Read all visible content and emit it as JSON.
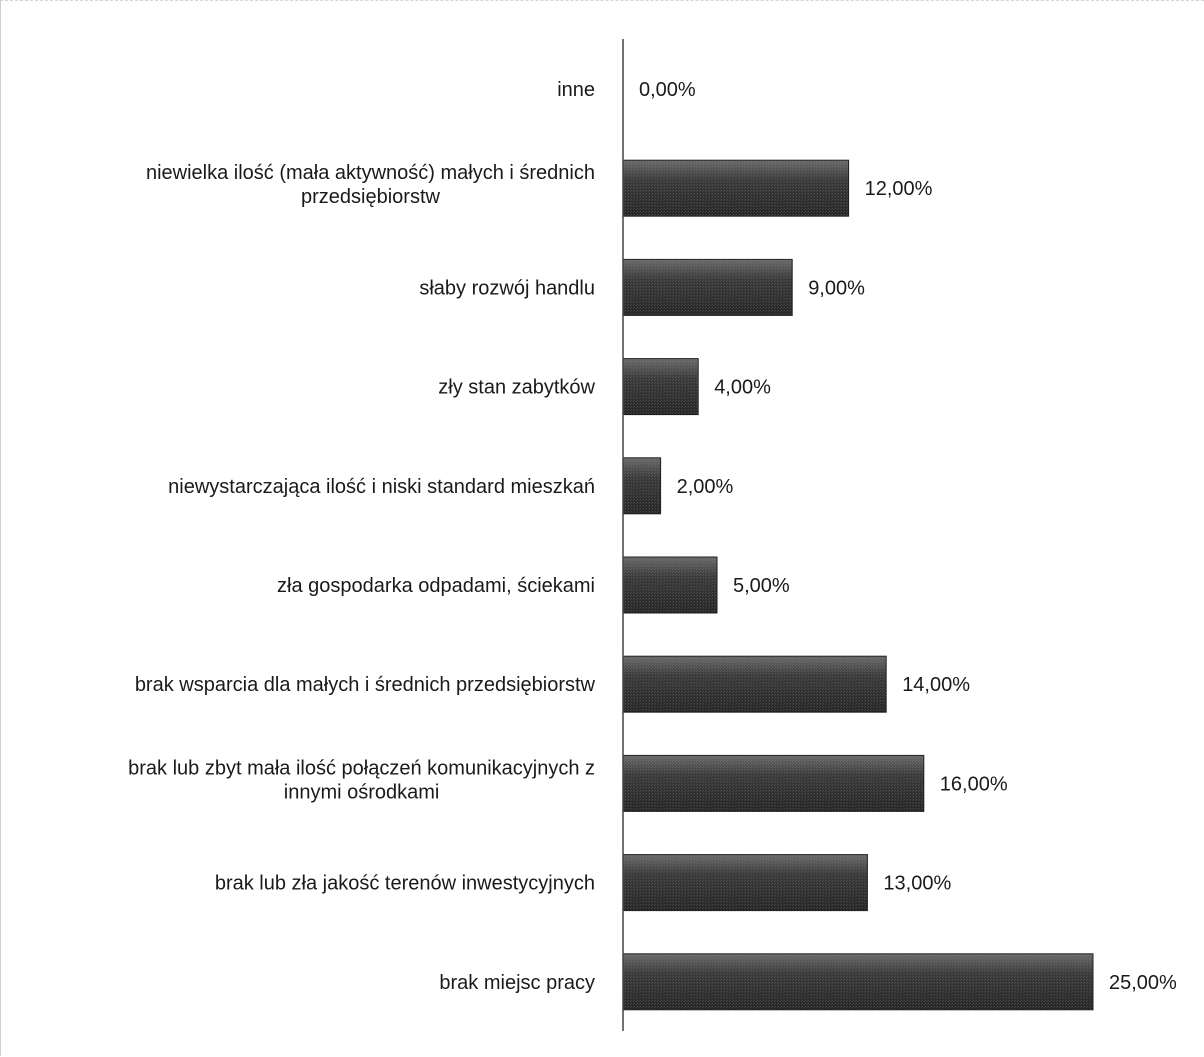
{
  "chart_data": {
    "type": "bar",
    "orientation": "horizontal",
    "categories": [
      [
        "inne"
      ],
      [
        "niewielka ilość (mała aktywność) małych i średnich",
        "przedsiębiorstw"
      ],
      [
        "słaby rozwój handlu"
      ],
      [
        "zły stan zabytków"
      ],
      [
        "niewystarczająca ilość i niski standard mieszkań"
      ],
      [
        "zła gospodarka odpadami, ściekami"
      ],
      [
        "brak wsparcia dla małych i średnich przedsiębiorstw"
      ],
      [
        "brak lub zbyt mała ilość połączeń komunikacyjnych z",
        "innymi ośrodkami"
      ],
      [
        "brak lub zła jakość terenów inwestycyjnych"
      ],
      [
        "brak miejsc pracy"
      ]
    ],
    "values": [
      0,
      12,
      9,
      4,
      2,
      5,
      14,
      16,
      13,
      25
    ],
    "data_labels": [
      "0,00%",
      "12,00%",
      "9,00%",
      "4,00%",
      "2,00%",
      "5,00%",
      "14,00%",
      "16,00%",
      "13,00%",
      "25,00%"
    ],
    "value_unit": "%",
    "xlim": [
      0,
      25
    ],
    "grid": false,
    "legend": "none",
    "colors": {
      "bar": "#3a3a3a",
      "bar_highlight": "#6b6b6b",
      "axis": "#444444"
    }
  }
}
